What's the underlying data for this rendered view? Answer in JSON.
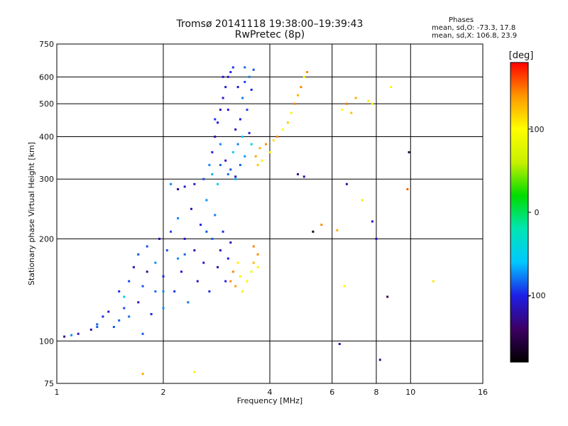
{
  "header": {
    "title": "Tromsø 20141118 19:38:00–19:39:43",
    "subtitle": "RwPretec (8p)"
  },
  "stats": {
    "heading": "Phases",
    "line_o": "mean, sd,O: -73.3, 17.8",
    "line_x": "mean, sd,X: 106.8, 23.9"
  },
  "colors": {
    "scale": [
      "#000000",
      "#3c0064",
      "#1e1ee6",
      "#00c8ff",
      "#00e6b4",
      "#00dc00",
      "#c8f000",
      "#ffff00",
      "#ff9600",
      "#ff0000"
    ]
  },
  "chart_data": {
    "type": "scatter",
    "xlabel": "Frequency [MHz]",
    "ylabel": "Stationary phase Virtual Height [km]",
    "xscale": "log",
    "yscale": "log",
    "xlim": [
      1,
      16
    ],
    "ylim": [
      75,
      750
    ],
    "xticks": [
      1,
      2,
      4,
      6,
      8,
      10,
      16
    ],
    "yticks": [
      75,
      100,
      200,
      300,
      400,
      500,
      600,
      750
    ],
    "grid": true,
    "colorbar": {
      "label": "[deg]",
      "range": [
        -180,
        180
      ],
      "ticks": [
        -100,
        0,
        100
      ]
    },
    "series": [
      {
        "value_range": [
          -130,
          -70
        ],
        "points": [
          [
            1.05,
            103
          ],
          [
            1.1,
            104
          ],
          [
            1.15,
            105
          ],
          [
            1.25,
            108
          ],
          [
            1.3,
            112
          ],
          [
            1.35,
            118
          ],
          [
            1.4,
            122
          ],
          [
            1.45,
            110
          ],
          [
            1.5,
            115
          ],
          [
            1.5,
            140
          ],
          [
            1.55,
            125
          ],
          [
            1.6,
            150
          ],
          [
            1.6,
            118
          ],
          [
            1.65,
            165
          ],
          [
            1.7,
            130
          ],
          [
            1.7,
            180
          ],
          [
            1.75,
            145
          ],
          [
            1.8,
            160
          ],
          [
            1.8,
            190
          ],
          [
            1.85,
            120
          ],
          [
            1.9,
            170
          ],
          [
            1.9,
            140
          ],
          [
            1.95,
            200
          ],
          [
            2.0,
            155
          ],
          [
            2.0,
            125
          ],
          [
            2.05,
            185
          ],
          [
            2.1,
            210
          ],
          [
            2.15,
            140
          ],
          [
            2.2,
            175
          ],
          [
            2.2,
            230
          ],
          [
            2.25,
            160
          ],
          [
            2.3,
            200
          ],
          [
            2.35,
            130
          ],
          [
            2.4,
            245
          ],
          [
            2.45,
            185
          ],
          [
            2.5,
            150
          ],
          [
            2.55,
            220
          ],
          [
            2.6,
            170
          ],
          [
            2.65,
            260
          ],
          [
            2.7,
            140
          ],
          [
            2.75,
            200
          ],
          [
            2.8,
            235
          ],
          [
            2.85,
            165
          ],
          [
            2.9,
            185
          ],
          [
            2.95,
            210
          ],
          [
            3.0,
            150
          ],
          [
            3.05,
            175
          ],
          [
            3.1,
            195
          ],
          [
            2.1,
            290
          ],
          [
            2.2,
            280
          ],
          [
            2.3,
            285
          ],
          [
            2.45,
            290
          ],
          [
            2.6,
            300
          ],
          [
            2.7,
            330
          ],
          [
            2.75,
            360
          ],
          [
            2.8,
            400
          ],
          [
            2.85,
            440
          ],
          [
            2.9,
            480
          ],
          [
            2.95,
            520
          ],
          [
            3.0,
            560
          ],
          [
            3.05,
            600
          ],
          [
            3.1,
            620
          ],
          [
            3.15,
            640
          ],
          [
            3.2,
            420
          ],
          [
            3.25,
            380
          ],
          [
            3.3,
            450
          ],
          [
            3.35,
            520
          ],
          [
            3.4,
            580
          ],
          [
            3.45,
            480
          ],
          [
            3.5,
            410
          ],
          [
            3.55,
            550
          ],
          [
            3.6,
            630
          ],
          [
            2.9,
            380
          ],
          [
            3.0,
            340
          ],
          [
            3.1,
            320
          ],
          [
            3.2,
            305
          ],
          [
            2.8,
            450
          ],
          [
            2.95,
            600
          ],
          [
            3.05,
            480
          ],
          [
            3.25,
            560
          ],
          [
            3.4,
            640
          ],
          [
            3.5,
            600
          ]
        ]
      },
      {
        "value_range": [
          -90,
          -50
        ],
        "points": [
          [
            1.3,
            110
          ],
          [
            1.55,
            135
          ],
          [
            1.75,
            105
          ],
          [
            2.0,
            140
          ],
          [
            2.3,
            180
          ],
          [
            2.65,
            210
          ],
          [
            2.85,
            290
          ],
          [
            3.05,
            310
          ],
          [
            3.2,
            300
          ],
          [
            3.3,
            330
          ],
          [
            3.4,
            350
          ],
          [
            2.75,
            310
          ],
          [
            2.9,
            330
          ],
          [
            3.15,
            360
          ],
          [
            3.35,
            400
          ],
          [
            3.55,
            380
          ]
        ]
      },
      {
        "value_range": [
          90,
          150
        ],
        "points": [
          [
            3.1,
            150
          ],
          [
            3.15,
            160
          ],
          [
            3.2,
            145
          ],
          [
            3.25,
            170
          ],
          [
            3.3,
            155
          ],
          [
            3.35,
            140
          ],
          [
            3.45,
            150
          ],
          [
            3.55,
            160
          ],
          [
            3.6,
            170
          ],
          [
            3.7,
            165
          ],
          [
            3.65,
            350
          ],
          [
            3.7,
            330
          ],
          [
            3.75,
            370
          ],
          [
            3.8,
            340
          ],
          [
            3.9,
            380
          ],
          [
            4.0,
            360
          ],
          [
            4.1,
            390
          ],
          [
            4.2,
            400
          ],
          [
            4.35,
            420
          ],
          [
            4.5,
            440
          ],
          [
            4.6,
            470
          ],
          [
            4.7,
            500
          ],
          [
            4.8,
            530
          ],
          [
            4.9,
            560
          ],
          [
            5.0,
            600
          ],
          [
            5.1,
            620
          ],
          [
            6.4,
            480
          ],
          [
            6.6,
            500
          ],
          [
            6.8,
            470
          ],
          [
            7.0,
            520
          ],
          [
            7.6,
            510
          ],
          [
            7.8,
            500
          ],
          [
            8.8,
            560
          ]
        ]
      },
      {
        "value_range": [
          100,
          160
        ],
        "points": [
          [
            1.75,
            80
          ],
          [
            2.45,
            81
          ],
          [
            3.6,
            190
          ],
          [
            3.7,
            180
          ],
          [
            5.6,
            220
          ],
          [
            6.2,
            212
          ],
          [
            6.5,
            145
          ],
          [
            7.3,
            260
          ],
          [
            9.8,
            280
          ],
          [
            11.6,
            150
          ]
        ]
      },
      {
        "value_range": [
          -170,
          -110
        ],
        "points": [
          [
            4.8,
            310
          ],
          [
            5.0,
            305
          ],
          [
            5.3,
            210
          ],
          [
            6.3,
            98
          ],
          [
            6.6,
            290
          ],
          [
            7.8,
            225
          ],
          [
            8.0,
            200
          ],
          [
            8.2,
            88
          ],
          [
            8.6,
            135
          ],
          [
            9.9,
            360
          ]
        ]
      }
    ]
  }
}
